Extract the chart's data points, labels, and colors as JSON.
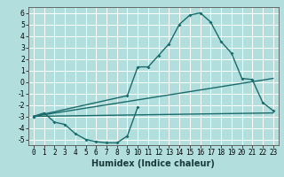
{
  "title": "",
  "xlabel": "Humidex (Indice chaleur)",
  "background_color": "#b2dede",
  "grid_color": "#ffffff",
  "line_color": "#1a6b6b",
  "xlim": [
    -0.5,
    23.5
  ],
  "ylim": [
    -5.5,
    6.5
  ],
  "xticks": [
    0,
    1,
    2,
    3,
    4,
    5,
    6,
    7,
    8,
    9,
    10,
    11,
    12,
    13,
    14,
    15,
    16,
    17,
    18,
    19,
    20,
    21,
    22,
    23
  ],
  "yticks": [
    -5,
    -4,
    -3,
    -2,
    -1,
    0,
    1,
    2,
    3,
    4,
    5,
    6
  ],
  "series1_x": [
    0,
    1,
    2,
    3,
    4,
    5,
    6,
    7,
    8,
    9,
    10
  ],
  "series1_y": [
    -3.0,
    -2.7,
    -3.5,
    -3.7,
    -4.5,
    -5.0,
    -5.2,
    -5.3,
    -5.3,
    -4.7,
    -2.2
  ],
  "series2_x": [
    0,
    23
  ],
  "series2_y": [
    -3.0,
    -2.7
  ],
  "series3_x": [
    0,
    23
  ],
  "series3_y": [
    -3.0,
    0.3
  ],
  "series4_x": [
    0,
    9,
    10,
    11,
    12,
    13,
    14,
    15,
    16,
    17,
    18,
    19,
    20,
    21,
    22,
    23
  ],
  "series4_y": [
    -3.0,
    -1.2,
    1.3,
    1.3,
    2.3,
    3.3,
    5.0,
    5.8,
    6.0,
    5.2,
    3.5,
    2.5,
    0.3,
    0.2,
    -1.8,
    -2.5
  ],
  "tick_fontsize": 5.5,
  "xlabel_fontsize": 7
}
